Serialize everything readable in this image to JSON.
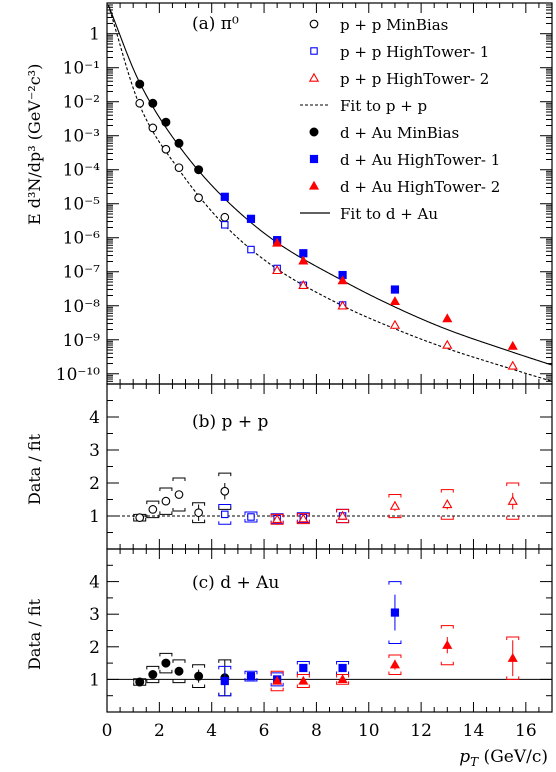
{
  "chart_data": [
    {
      "panel": "a",
      "type": "scatter",
      "panel_label": "(a)",
      "particle": "π⁰",
      "ylabel": "E d³N/dp³  (GeV⁻²c³)",
      "y_scale": "log",
      "ylim": [
        5e-11,
        8
      ],
      "xlim": [
        0,
        17
      ],
      "y_ticks": [
        "10⁻¹⁰",
        "10⁻⁹",
        "10⁻⁸",
        "10⁻⁷",
        "10⁻⁶",
        "10⁻⁵",
        "10⁻⁴",
        "10⁻³",
        "10⁻²",
        "10⁻¹",
        "1"
      ],
      "legend": [
        {
          "marker": "open-circle",
          "color": "#000000",
          "label": "p + p MinBias"
        },
        {
          "marker": "open-square",
          "color": "#0000ff",
          "label": "p + p HighTower- 1"
        },
        {
          "marker": "open-triangle",
          "color": "#ff0000",
          "label": "p + p HighTower- 2"
        },
        {
          "marker": "dashed-line",
          "color": "#000000",
          "label": "Fit to p + p"
        },
        {
          "marker": "filled-circle",
          "color": "#000000",
          "label": "d + Au MinBias"
        },
        {
          "marker": "filled-square",
          "color": "#0000ff",
          "label": "d + Au HighTower- 1"
        },
        {
          "marker": "filled-triangle",
          "color": "#ff0000",
          "label": "d + Au HighTower- 2"
        },
        {
          "marker": "solid-line",
          "color": "#000000",
          "label": "Fit to d + Au"
        }
      ],
      "series": [
        {
          "name": "p + p MinBias",
          "marker": "open-circle",
          "color": "#000000",
          "x": [
            1.25,
            1.75,
            2.25,
            2.75,
            3.5,
            4.5
          ],
          "y": [
            0.009,
            0.0017,
            0.0004,
            0.000115,
            1.5e-05,
            4e-06
          ]
        },
        {
          "name": "p + p HighTower- 1",
          "marker": "open-square",
          "color": "#0000ff",
          "x": [
            4.5,
            5.5,
            6.5,
            7.5,
            9.0
          ],
          "y": [
            2.4e-06,
            4.5e-07,
            1.25e-07,
            4e-08,
            1.05e-08
          ]
        },
        {
          "name": "p + p HighTower- 2",
          "marker": "open-triangle",
          "color": "#ff0000",
          "x": [
            6.5,
            7.5,
            9.0,
            11.0,
            13.0,
            15.5
          ],
          "y": [
            1.1e-07,
            4e-08,
            1e-08,
            2.7e-09,
            7e-10,
            1.7e-10
          ]
        },
        {
          "name": "d + Au MinBias",
          "marker": "filled-circle",
          "color": "#000000",
          "x": [
            1.25,
            1.75,
            2.25,
            2.75,
            3.5
          ],
          "y": [
            0.033,
            0.009,
            0.0025,
            0.0006,
            0.0001
          ]
        },
        {
          "name": "d + Au HighTower- 1",
          "marker": "filled-square",
          "color": "#0000ff",
          "x": [
            4.5,
            5.5,
            6.5,
            7.5,
            9.0,
            11.0
          ],
          "y": [
            1.6e-05,
            3.6e-06,
            8.5e-07,
            3.5e-07,
            8e-08,
            3e-08
          ]
        },
        {
          "name": "d + Au HighTower- 2",
          "marker": "filled-triangle",
          "color": "#ff0000",
          "x": [
            6.5,
            7.5,
            9.0,
            11.0,
            13.0,
            15.5
          ],
          "y": [
            7e-07,
            2.1e-07,
            5.5e-08,
            1.35e-08,
            4.2e-09,
            6.5e-10
          ]
        }
      ],
      "fits": [
        {
          "name": "Fit to p + p",
          "style": "dashed",
          "color": "#000000",
          "x": [
            0.05,
            1.25,
            2.75,
            4.5,
            6.5,
            9.0,
            11.0,
            13.0,
            15.5,
            17.0
          ],
          "y": [
            7.0,
            0.0078,
            0.0001,
            2.3e-06,
            1.2e-07,
            1e-08,
            2.1e-09,
            5.5e-10,
            1.35e-10,
            6e-11
          ]
        },
        {
          "name": "Fit to d + Au",
          "style": "solid",
          "color": "#000000",
          "x": [
            0.05,
            1.25,
            2.75,
            4.5,
            6.5,
            9.0,
            11.0,
            13.0,
            15.5,
            17.0
          ],
          "y": [
            7.0,
            0.036,
            0.0005,
            1.4e-05,
            7.2e-07,
            5.5e-08,
            9.2e-09,
            2e-09,
            4.3e-10,
            1.8e-10
          ]
        }
      ]
    },
    {
      "panel": "b",
      "type": "scatter",
      "panel_label": "(b)",
      "system": "p + p",
      "ylabel": "Data / fit",
      "ylim": [
        0,
        5
      ],
      "xlim": [
        0,
        17
      ],
      "y_ticks": [
        "1",
        "2",
        "3",
        "4"
      ],
      "reference_line": {
        "y": 1,
        "style": "dashed"
      },
      "series": [
        {
          "name": "p + p MinBias",
          "marker": "open-circle",
          "color": "#000000",
          "x": [
            1.25,
            1.75,
            2.25,
            2.75,
            3.5,
            4.5
          ],
          "y": [
            0.95,
            1.2,
            1.45,
            1.65,
            1.1,
            1.75
          ],
          "stat_err": [
            0.1,
            0.1,
            0.1,
            0.1,
            0.25,
            0.25
          ],
          "sys_err": [
            0.1,
            0.25,
            0.4,
            0.5,
            0.3,
            0.55
          ]
        },
        {
          "name": "p + p HighTower- 1",
          "marker": "open-square",
          "color": "#0000ff",
          "x": [
            4.5,
            5.5,
            6.5,
            7.5,
            9.0
          ],
          "y": [
            1.05,
            0.97,
            0.92,
            0.95,
            1.0
          ],
          "stat_err": [
            0.05,
            0.05,
            0.05,
            0.05,
            0.05
          ],
          "sys_err": [
            0.3,
            0.15,
            0.15,
            0.15,
            0.2
          ]
        },
        {
          "name": "p + p HighTower- 2",
          "marker": "open-triangle",
          "color": "#ff0000",
          "x": [
            6.5,
            7.5,
            9.0,
            11.0,
            13.0,
            15.5
          ],
          "y": [
            0.9,
            0.92,
            1.0,
            1.3,
            1.35,
            1.45
          ],
          "stat_err": [
            0.05,
            0.05,
            0.1,
            0.15,
            0.15,
            0.25
          ],
          "sys_err": [
            0.15,
            0.15,
            0.2,
            0.35,
            0.45,
            0.55
          ]
        }
      ]
    },
    {
      "panel": "c",
      "type": "scatter",
      "panel_label": "(c)",
      "system": "d + Au",
      "ylabel": "Data / fit",
      "xlabel": "p_T (GeV/c)",
      "ylim": [
        0,
        5
      ],
      "xlim": [
        0,
        17
      ],
      "y_ticks": [
        "1",
        "2",
        "3",
        "4"
      ],
      "x_ticks": [
        "0",
        "2",
        "4",
        "6",
        "8",
        "10",
        "12",
        "14",
        "16"
      ],
      "reference_line": {
        "y": 1,
        "style": "solid"
      },
      "series": [
        {
          "name": "d + Au MinBias",
          "marker": "filled-circle",
          "color": "#000000",
          "x": [
            1.25,
            1.75,
            2.25,
            2.75,
            3.5,
            4.5
          ],
          "y": [
            0.92,
            1.15,
            1.5,
            1.25,
            1.1,
            1.05
          ],
          "stat_err": [
            0.05,
            0.05,
            0.05,
            0.1,
            0.2,
            0.55
          ],
          "sys_err": [
            0.1,
            0.25,
            0.3,
            0.35,
            0.35,
            0.55
          ]
        },
        {
          "name": "d + Au HighTower- 1",
          "marker": "filled-square",
          "color": "#0000ff",
          "x": [
            4.5,
            5.5,
            6.5,
            7.5,
            9.0,
            11.0
          ],
          "y": [
            0.95,
            1.1,
            1.0,
            1.35,
            1.35,
            3.05
          ],
          "stat_err": [
            0.4,
            0.05,
            0.05,
            0.1,
            0.1,
            0.55
          ],
          "sys_err": [
            0.45,
            0.15,
            0.2,
            0.2,
            0.2,
            0.95
          ]
        },
        {
          "name": "d + Au HighTower- 2",
          "marker": "filled-triangle",
          "color": "#ff0000",
          "x": [
            6.5,
            7.5,
            9.0,
            11.0,
            13.0,
            15.5
          ],
          "y": [
            0.95,
            0.95,
            1.0,
            1.45,
            2.05,
            1.65
          ],
          "stat_err": [
            0.1,
            0.1,
            0.1,
            0.15,
            0.25,
            0.55
          ],
          "sys_err": [
            0.3,
            0.2,
            0.15,
            0.3,
            0.6,
            0.65
          ]
        }
      ]
    }
  ],
  "axis_labels": {
    "x_quantity": "p",
    "x_subscript": "T",
    "x_unit": "(GeV/c)",
    "ya_prefix": "E",
    "ya_num": "d³N",
    "ya_den": "dp³",
    "ya_unit": "(GeV⁻²c³)"
  }
}
